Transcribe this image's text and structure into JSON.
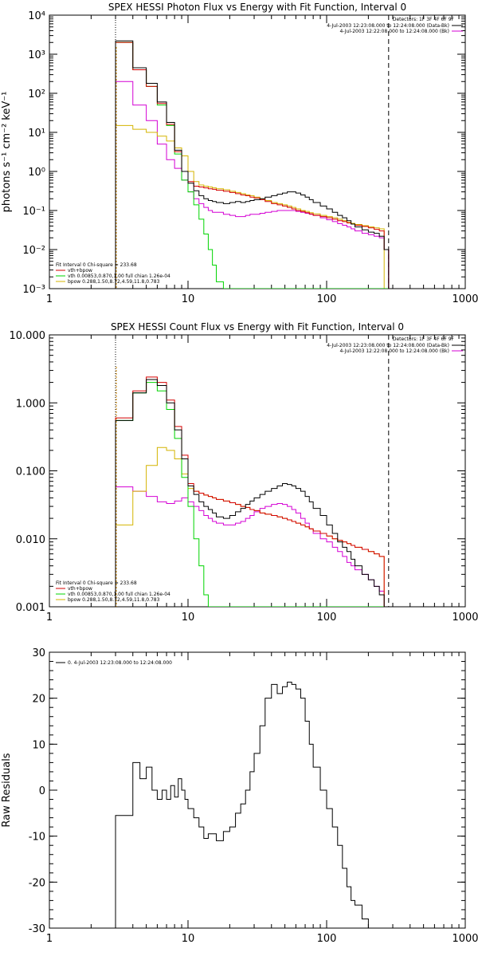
{
  "colors": {
    "data": "#000000",
    "total": "#d40000",
    "vth": "#00d400",
    "bpow": "#d4b400",
    "background": "#d400d4"
  },
  "chart_data": [
    {
      "type": "line",
      "title": "SPEX HESSI Photon Flux vs Energy with Fit Function, Interval 0",
      "xlabel": "",
      "ylabel": "photons s⁻¹ cm⁻² keV⁻¹",
      "xscale": "log",
      "yscale": "log",
      "xlim": [
        1,
        1000
      ],
      "ylim": [
        0.001,
        10000
      ],
      "x_ticks": [
        "1",
        "10",
        "100",
        "1000"
      ],
      "y_ticks": [
        "10⁻³",
        "10⁻²",
        "10⁻¹",
        "10⁰",
        "10¹",
        "10²",
        "10³",
        "10⁴"
      ],
      "energy_range_markers": [
        3,
        280
      ],
      "header_right": {
        "detectors": "Detectors: 1F 3F 4F 6F 9F",
        "lines": [
          {
            "text": "4-Jul-2003 12:23:08.000 to 12:24:08.000 (Data-Bk)",
            "color": "#000000"
          },
          {
            "text": "4-Jul-2003 12:22:08.000 to 12:24:08.000 (Bk)",
            "color": "#d400d4"
          }
        ]
      },
      "legend": {
        "header": "Fit Interval 0   Chi-square = 233.68",
        "entries": [
          {
            "text": "vth+bpow",
            "color": "#d40000"
          },
          {
            "text": "vth 0.00853,0.870,1.00  full chian 1.26e-04",
            "color": "#00d400"
          },
          {
            "text": "bpow 0.288,1.50,8.72,4.59,11.8,0.783",
            "color": "#d4b400"
          }
        ]
      },
      "edges": [
        3,
        3.5,
        4,
        4.5,
        5,
        5.5,
        6,
        6.5,
        7,
        7.5,
        8,
        8.5,
        9,
        9.5,
        10,
        11,
        12,
        13,
        14,
        15,
        16,
        18,
        20,
        22,
        24,
        26,
        28,
        30,
        33,
        36,
        40,
        44,
        48,
        52,
        56,
        60,
        65,
        70,
        75,
        80,
        90,
        100,
        110,
        120,
        130,
        140,
        150,
        160,
        180,
        200,
        220,
        240,
        260,
        280
      ],
      "series": [
        {
          "name": "Data-Bk",
          "key": "data",
          "values": [
            2200,
            2200,
            450,
            450,
            180,
            180,
            60,
            60,
            18,
            18,
            3.5,
            3.5,
            1.0,
            1.0,
            0.5,
            0.32,
            0.24,
            0.2,
            0.18,
            0.17,
            0.16,
            0.15,
            0.16,
            0.17,
            0.16,
            0.17,
            0.18,
            0.19,
            0.2,
            0.22,
            0.24,
            0.26,
            0.28,
            0.3,
            0.3,
            0.28,
            0.25,
            0.22,
            0.19,
            0.16,
            0.13,
            0.11,
            0.09,
            0.075,
            0.065,
            0.055,
            0.045,
            0.038,
            0.032,
            0.028,
            0.026,
            0.022,
            0.01
          ]
        },
        {
          "name": "vth+bpow",
          "key": "total",
          "values": [
            2000,
            2000,
            400,
            400,
            150,
            150,
            55,
            55,
            16,
            16,
            3.2,
            3.2,
            1.0,
            1.0,
            0.55,
            0.42,
            0.4,
            0.38,
            0.36,
            0.35,
            0.33,
            0.31,
            0.29,
            0.27,
            0.25,
            0.24,
            0.22,
            0.21,
            0.19,
            0.17,
            0.15,
            0.14,
            0.13,
            0.12,
            0.11,
            0.1,
            0.095,
            0.088,
            0.082,
            0.075,
            0.07,
            0.065,
            0.06,
            0.055,
            0.052,
            0.048,
            0.045,
            0.042,
            0.039,
            0.036,
            0.033,
            0.03,
            0.01
          ]
        },
        {
          "name": "vth",
          "key": "vth",
          "values": [
            2000,
            2000,
            400,
            400,
            150,
            150,
            50,
            50,
            15,
            15,
            2.8,
            2.8,
            0.6,
            0.6,
            0.3,
            0.14,
            0.06,
            0.025,
            0.01,
            0.004,
            0.0015,
            0.001,
            0.001,
            0.001,
            0.001,
            0.001,
            0.001,
            0.001,
            0.001,
            0.001,
            0.001,
            0.001,
            0.001,
            0.001,
            0.001,
            0.001,
            0.001,
            0.001,
            0.001,
            0.001,
            0.001,
            0.001,
            0.001,
            0.001,
            0.001,
            0.001,
            0.001,
            0.001,
            0.001,
            0.001,
            0.001,
            0.001,
            0.001
          ]
        },
        {
          "name": "bpow",
          "key": "bpow",
          "values": [
            15,
            15,
            12,
            12,
            10,
            10,
            8,
            8,
            6,
            6,
            4,
            4,
            2.5,
            2.5,
            1.0,
            0.55,
            0.45,
            0.42,
            0.4,
            0.38,
            0.36,
            0.34,
            0.31,
            0.29,
            0.27,
            0.25,
            0.24,
            0.22,
            0.2,
            0.18,
            0.16,
            0.15,
            0.14,
            0.13,
            0.12,
            0.11,
            0.1,
            0.095,
            0.088,
            0.082,
            0.075,
            0.07,
            0.065,
            0.06,
            0.055,
            0.05,
            0.047,
            0.044,
            0.041,
            0.038,
            0.036,
            0.034,
            0.001
          ]
        },
        {
          "name": "Bk",
          "key": "background",
          "values": [
            200,
            200,
            50,
            50,
            20,
            20,
            5,
            5,
            2,
            2,
            1.2,
            1.2,
            0.6,
            0.6,
            0.3,
            0.2,
            0.15,
            0.12,
            0.1,
            0.09,
            0.09,
            0.08,
            0.075,
            0.07,
            0.07,
            0.075,
            0.08,
            0.08,
            0.085,
            0.09,
            0.095,
            0.1,
            0.1,
            0.1,
            0.1,
            0.095,
            0.09,
            0.085,
            0.08,
            0.075,
            0.065,
            0.058,
            0.052,
            0.046,
            0.042,
            0.038,
            0.034,
            0.03,
            0.026,
            0.024,
            0.022,
            0.02,
            0.01
          ]
        }
      ]
    },
    {
      "type": "line",
      "title": "SPEX HESSI Count Flux vs Energy with Fit Function, Interval 0",
      "xlabel": "",
      "ylabel": "",
      "xscale": "log",
      "yscale": "log",
      "xlim": [
        1,
        1000
      ],
      "ylim": [
        0.001,
        10
      ],
      "x_ticks": [
        "1",
        "10",
        "100",
        "1000"
      ],
      "y_ticks": [
        "0.001",
        "0.010",
        "0.100",
        "1.000",
        "10.000"
      ],
      "energy_range_markers": [
        3,
        280
      ],
      "header_right": {
        "detectors": "Detectors: 1F 3F 4F 6F 9F",
        "lines": [
          {
            "text": "4-Jul-2003 12:23:08.000 to 12:24:08.000 (Data-Bk)",
            "color": "#000000"
          },
          {
            "text": "4-Jul-2003 12:22:08.000 to 12:24:08.000 (Bk)",
            "color": "#d400d4"
          }
        ]
      },
      "legend": {
        "header": "Fit Interval 0   Chi-square = 233.68",
        "entries": [
          {
            "text": "vth+bpow",
            "color": "#d40000"
          },
          {
            "text": "vth 0.00853,0.870,1.00  full chian 1.26e-04",
            "color": "#00d400"
          },
          {
            "text": "bpow 0.288,1.50,8.72,4.59,11.8,0.783",
            "color": "#d4b400"
          }
        ]
      },
      "edges": [
        3,
        3.5,
        4,
        4.5,
        5,
        5.5,
        6,
        6.5,
        7,
        7.5,
        8,
        8.5,
        9,
        9.5,
        10,
        11,
        12,
        13,
        14,
        15,
        16,
        18,
        20,
        22,
        24,
        26,
        28,
        30,
        33,
        36,
        40,
        44,
        48,
        52,
        56,
        60,
        65,
        70,
        75,
        80,
        90,
        100,
        110,
        120,
        130,
        140,
        150,
        160,
        180,
        200,
        220,
        240,
        260,
        280
      ],
      "series": [
        {
          "name": "Data-Bk",
          "key": "data",
          "values": [
            0.55,
            0.55,
            1.4,
            1.4,
            2.2,
            2.2,
            1.8,
            1.8,
            1.0,
            1.0,
            0.4,
            0.4,
            0.15,
            0.15,
            0.06,
            0.045,
            0.035,
            0.03,
            0.027,
            0.024,
            0.021,
            0.02,
            0.022,
            0.025,
            0.028,
            0.032,
            0.036,
            0.04,
            0.045,
            0.05,
            0.055,
            0.06,
            0.065,
            0.063,
            0.06,
            0.055,
            0.05,
            0.042,
            0.035,
            0.028,
            0.022,
            0.016,
            0.012,
            0.009,
            0.0075,
            0.0065,
            0.005,
            0.004,
            0.003,
            0.0025,
            0.002,
            0.0015,
            0.001
          ]
        },
        {
          "name": "vth+bpow",
          "key": "total",
          "values": [
            0.6,
            0.6,
            1.5,
            1.5,
            2.4,
            2.4,
            2.0,
            2.0,
            1.1,
            1.1,
            0.45,
            0.45,
            0.17,
            0.17,
            0.065,
            0.05,
            0.047,
            0.044,
            0.042,
            0.04,
            0.038,
            0.036,
            0.034,
            0.032,
            0.03,
            0.029,
            0.027,
            0.026,
            0.024,
            0.023,
            0.022,
            0.021,
            0.02,
            0.019,
            0.018,
            0.017,
            0.016,
            0.015,
            0.014,
            0.013,
            0.012,
            0.011,
            0.01,
            0.0095,
            0.009,
            0.0085,
            0.008,
            0.0075,
            0.007,
            0.0065,
            0.006,
            0.0055,
            0.001
          ]
        },
        {
          "name": "vth",
          "key": "vth",
          "values": [
            0.55,
            0.55,
            1.4,
            1.4,
            2.0,
            2.0,
            1.5,
            1.5,
            0.8,
            0.8,
            0.3,
            0.3,
            0.08,
            0.08,
            0.03,
            0.01,
            0.004,
            0.0015,
            0.001,
            0.001,
            0.001,
            0.001,
            0.001,
            0.001,
            0.001,
            0.001,
            0.001,
            0.001,
            0.001,
            0.001,
            0.001,
            0.001,
            0.001,
            0.001,
            0.001,
            0.001,
            0.001,
            0.001,
            0.001,
            0.001,
            0.001,
            0.001,
            0.001,
            0.001,
            0.001,
            0.001,
            0.001,
            0.001,
            0.001,
            0.001,
            0.001,
            0.001,
            0.001
          ]
        },
        {
          "name": "bpow",
          "key": "bpow",
          "values": [
            0.016,
            0.016,
            0.05,
            0.05,
            0.12,
            0.12,
            0.22,
            0.22,
            0.2,
            0.2,
            0.15,
            0.15,
            0.09,
            0.09,
            0.055,
            0.05,
            0.047,
            0.044,
            0.042,
            0.04,
            0.038,
            0.036,
            0.034,
            0.032,
            0.03,
            0.029,
            0.027,
            0.026,
            0.024,
            0.023,
            0.022,
            0.021,
            0.02,
            0.019,
            0.018,
            0.017,
            0.016,
            0.015,
            0.014,
            0.013,
            0.012,
            0.011,
            0.01,
            0.0095,
            0.009,
            0.0085,
            0.008,
            0.0075,
            0.007,
            0.0065,
            0.006,
            0.0055,
            0.001
          ]
        },
        {
          "name": "Bk",
          "key": "background",
          "values": [
            0.058,
            0.058,
            0.05,
            0.05,
            0.042,
            0.042,
            0.035,
            0.035,
            0.033,
            0.033,
            0.036,
            0.036,
            0.04,
            0.04,
            0.035,
            0.03,
            0.026,
            0.022,
            0.02,
            0.018,
            0.017,
            0.016,
            0.016,
            0.017,
            0.018,
            0.02,
            0.022,
            0.025,
            0.028,
            0.03,
            0.032,
            0.033,
            0.032,
            0.03,
            0.027,
            0.024,
            0.02,
            0.017,
            0.014,
            0.012,
            0.01,
            0.009,
            0.0075,
            0.0065,
            0.0055,
            0.0045,
            0.004,
            0.0035,
            0.003,
            0.0025,
            0.002,
            0.0017,
            0.001
          ]
        }
      ]
    },
    {
      "type": "line",
      "title": "",
      "xlabel": "",
      "ylabel": "Raw Residuals",
      "xscale": "log",
      "yscale": "linear",
      "xlim": [
        1,
        1000
      ],
      "ylim": [
        -30,
        30
      ],
      "x_ticks": [
        "1",
        "10",
        "100",
        "1000"
      ],
      "y_ticks": [
        "-30",
        "-20",
        "-10",
        "0",
        "10",
        "20",
        "30"
      ],
      "legend": {
        "header": "",
        "entries": [
          {
            "text": "0. 4-Jul-2003 12:23:08.000 to 12:24:08.000",
            "color": "#000000"
          }
        ]
      },
      "edges": [
        3,
        4,
        4.5,
        5,
        5.5,
        6,
        6.5,
        7,
        7.5,
        8,
        8.5,
        9,
        9.5,
        10,
        11,
        12,
        13,
        14,
        15,
        16,
        18,
        20,
        22,
        24,
        26,
        28,
        30,
        33,
        36,
        40,
        44,
        48,
        52,
        56,
        60,
        65,
        70,
        75,
        80,
        90,
        100,
        110,
        120,
        130,
        140,
        150,
        160,
        180,
        200,
        220,
        240,
        260,
        280
      ],
      "series": [
        {
          "name": "0. 4-Jul-2003 12:23:08.000 to 12:24:08.000",
          "key": "data",
          "values": [
            -5.5,
            6,
            2.5,
            5,
            0,
            -2,
            0,
            -2,
            1,
            -1.5,
            2.5,
            0,
            -2,
            -4,
            -6,
            -8,
            -10.5,
            -9.5,
            -9.5,
            -11,
            -9,
            -8,
            -5,
            -3,
            0,
            4,
            8,
            14,
            20,
            23,
            21,
            22.5,
            23.5,
            23,
            22,
            20,
            15,
            10,
            5,
            0,
            -4,
            -8,
            -12,
            -17,
            -21,
            -24,
            -25,
            -28,
            -30,
            -30,
            -30,
            -30
          ]
        }
      ]
    }
  ]
}
